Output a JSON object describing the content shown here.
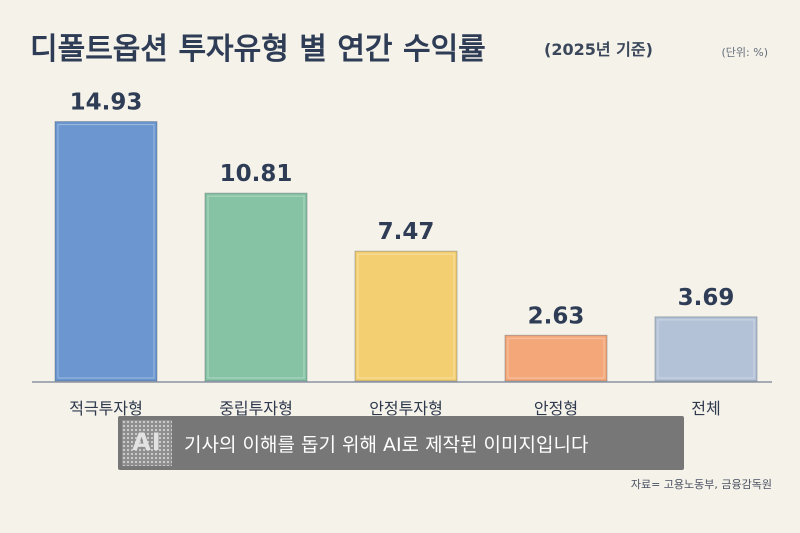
{
  "header": {
    "title": "디폴트옵션 투자유형 별 연간 수익률",
    "subtitle": "(2025년 기준)",
    "unit": "(단위: %)"
  },
  "chart_data": {
    "type": "bar",
    "categories": [
      "적극투자형",
      "중립투자형",
      "안정투자형",
      "안정형",
      "전체"
    ],
    "values": [
      14.93,
      10.81,
      7.47,
      2.63,
      3.69
    ],
    "value_labels": [
      "14.93",
      "10.81",
      "7.47",
      "2.63",
      "3.69"
    ],
    "colors": [
      "#6b96cf",
      "#86c3a4",
      "#f3cf72",
      "#f4a779",
      "#b3c2d6"
    ],
    "ylim": [
      0,
      16
    ],
    "grid": false
  },
  "banner": {
    "logo_text": "AI",
    "text": "기사의 이해를 돕기 위해 AI로 제작된 이미지입니다"
  },
  "footer": {
    "source": "자료= 고용노동부, 금융감독원"
  }
}
